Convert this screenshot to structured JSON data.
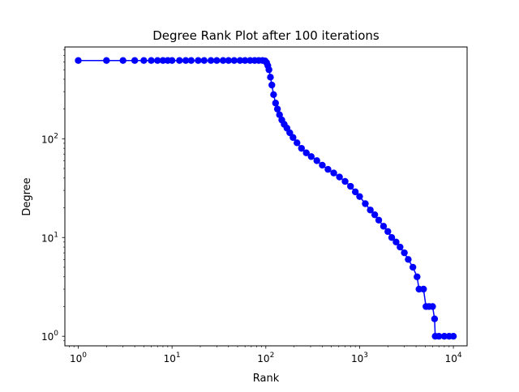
{
  "chart_data": {
    "type": "line",
    "title": "Degree Rank Plot after 100 iterations",
    "xlabel": "Rank",
    "ylabel": "Degree",
    "xscale": "log",
    "yscale": "log",
    "xlim": [
      0.72,
      14000
    ],
    "ylim": [
      0.8,
      850
    ],
    "grid": false,
    "x_ticks": [
      {
        "value": 1,
        "base": "10",
        "exp": "0"
      },
      {
        "value": 10,
        "base": "10",
        "exp": "1"
      },
      {
        "value": 100,
        "base": "10",
        "exp": "2"
      },
      {
        "value": 1000,
        "base": "10",
        "exp": "3"
      },
      {
        "value": 10000,
        "base": "10",
        "exp": "4"
      }
    ],
    "y_ticks": [
      {
        "value": 1,
        "base": "10",
        "exp": "0"
      },
      {
        "value": 10,
        "base": "10",
        "exp": "1"
      },
      {
        "value": 100,
        "base": "10",
        "exp": "2"
      }
    ],
    "series": [
      {
        "color": "#0000ff",
        "marker": "circle",
        "points": [
          [
            1,
            620
          ],
          [
            2,
            620
          ],
          [
            3,
            620
          ],
          [
            4,
            620
          ],
          [
            5,
            620
          ],
          [
            6,
            620
          ],
          [
            7,
            620
          ],
          [
            8,
            620
          ],
          [
            9,
            620
          ],
          [
            10,
            620
          ],
          [
            12,
            620
          ],
          [
            14,
            620
          ],
          [
            16,
            620
          ],
          [
            19,
            620
          ],
          [
            22,
            620
          ],
          [
            26,
            620
          ],
          [
            30,
            620
          ],
          [
            35,
            620
          ],
          [
            40,
            620
          ],
          [
            46,
            620
          ],
          [
            53,
            620
          ],
          [
            60,
            620
          ],
          [
            68,
            620
          ],
          [
            76,
            620
          ],
          [
            84,
            620
          ],
          [
            92,
            620
          ],
          [
            98,
            615
          ],
          [
            102,
            590
          ],
          [
            105,
            550
          ],
          [
            108,
            500
          ],
          [
            112,
            420
          ],
          [
            116,
            350
          ],
          [
            121,
            280
          ],
          [
            127,
            230
          ],
          [
            133,
            200
          ],
          [
            140,
            175
          ],
          [
            148,
            155
          ],
          [
            157,
            140
          ],
          [
            168,
            128
          ],
          [
            180,
            115
          ],
          [
            195,
            103
          ],
          [
            215,
            91
          ],
          [
            240,
            80
          ],
          [
            270,
            72
          ],
          [
            305,
            66
          ],
          [
            350,
            60
          ],
          [
            400,
            54
          ],
          [
            460,
            49
          ],
          [
            530,
            45
          ],
          [
            610,
            41
          ],
          [
            700,
            37
          ],
          [
            800,
            33
          ],
          [
            900,
            29
          ],
          [
            1000,
            26
          ],
          [
            1150,
            22
          ],
          [
            1300,
            19
          ],
          [
            1450,
            17
          ],
          [
            1600,
            15
          ],
          [
            1800,
            13
          ],
          [
            2000,
            11.5
          ],
          [
            2200,
            10
          ],
          [
            2450,
            9
          ],
          [
            2700,
            8
          ],
          [
            3000,
            7
          ],
          [
            3300,
            6
          ],
          [
            3700,
            5
          ],
          [
            4100,
            4
          ],
          [
            4300,
            3
          ],
          [
            4800,
            3
          ],
          [
            5100,
            2
          ],
          [
            5500,
            2
          ],
          [
            6000,
            2
          ],
          [
            6300,
            1.5
          ],
          [
            6400,
            1
          ],
          [
            7000,
            1
          ],
          [
            8000,
            1
          ],
          [
            9000,
            1
          ],
          [
            10000,
            1
          ]
        ]
      }
    ]
  }
}
